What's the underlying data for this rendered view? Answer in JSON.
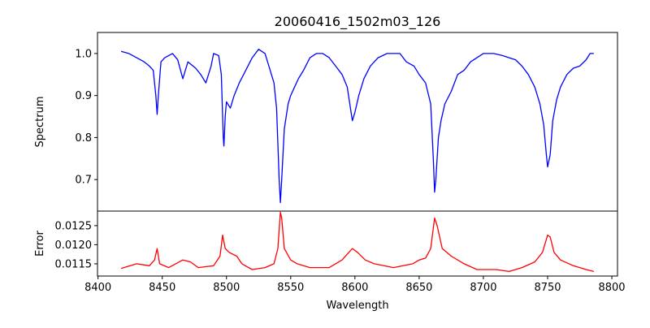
{
  "chart_data": [
    {
      "type": "line",
      "title": "20060416_1502m03_126",
      "xlabel": "",
      "ylabel": "Spectrum",
      "xlim": [
        8399.6,
        8804.4
      ],
      "ylim": [
        0.625,
        1.05
      ],
      "yticks": [
        0.7,
        0.8,
        0.9,
        1.0
      ],
      "ytick_labels": [
        "0.7",
        "0.8",
        "0.9",
        "1.0"
      ],
      "color": "#0000ff",
      "grid": false,
      "x": [
        8418,
        8424,
        8430,
        8436,
        8440,
        8443,
        8445,
        8446,
        8447,
        8449,
        8452,
        8458,
        8462,
        8466,
        8470,
        8476,
        8480,
        8484,
        8488,
        8490,
        8494,
        8496,
        8497.5,
        8498,
        8499,
        8500,
        8503,
        8506,
        8510,
        8515,
        8520,
        8525,
        8530,
        8534,
        8537,
        8539,
        8541,
        8542,
        8543,
        8545,
        8548,
        8550,
        8553,
        8556,
        8560,
        8565,
        8570,
        8575,
        8580,
        8585,
        8590,
        8594,
        8597,
        8598,
        8600,
        8603,
        8607,
        8612,
        8618,
        8625,
        8635,
        8640,
        8646,
        8650,
        8655,
        8659,
        8661,
        8662,
        8663,
        8665,
        8667,
        8670,
        8675,
        8680,
        8685,
        8690,
        8695,
        8700,
        8708,
        8715,
        8720,
        8725,
        8730,
        8735,
        8740,
        8744,
        8747,
        8749,
        8750,
        8752,
        8754,
        8757,
        8760,
        8765,
        8770,
        8775,
        8780,
        8783,
        8786
      ],
      "y": [
        1.005,
        1.0,
        0.99,
        0.98,
        0.97,
        0.96,
        0.9,
        0.855,
        0.9,
        0.98,
        0.99,
        1.0,
        0.985,
        0.94,
        0.98,
        0.965,
        0.95,
        0.93,
        0.97,
        1.0,
        0.995,
        0.95,
        0.8,
        0.78,
        0.85,
        0.885,
        0.87,
        0.9,
        0.93,
        0.96,
        0.99,
        1.01,
        1.0,
        0.96,
        0.93,
        0.87,
        0.7,
        0.645,
        0.7,
        0.82,
        0.88,
        0.9,
        0.92,
        0.94,
        0.96,
        0.99,
        1.0,
        1.0,
        0.99,
        0.97,
        0.95,
        0.92,
        0.86,
        0.84,
        0.86,
        0.9,
        0.94,
        0.97,
        0.99,
        1.0,
        1.0,
        0.98,
        0.97,
        0.95,
        0.93,
        0.88,
        0.75,
        0.67,
        0.7,
        0.8,
        0.84,
        0.88,
        0.91,
        0.95,
        0.96,
        0.98,
        0.99,
        1.0,
        1.0,
        0.995,
        0.99,
        0.985,
        0.97,
        0.95,
        0.92,
        0.88,
        0.83,
        0.76,
        0.73,
        0.76,
        0.84,
        0.89,
        0.92,
        0.95,
        0.965,
        0.97,
        0.985,
        1.0,
        1.0
      ]
    },
    {
      "type": "line",
      "title": "",
      "xlabel": "Wavelength",
      "ylabel": "Error",
      "xlim": [
        8399.6,
        8804.4
      ],
      "ylim": [
        0.01118,
        0.01288
      ],
      "yticks": [
        0.0115,
        0.012,
        0.0125
      ],
      "ytick_labels": [
        "0.0115",
        "0.0120",
        "0.0125"
      ],
      "xticks": [
        8400,
        8450,
        8500,
        8550,
        8600,
        8650,
        8700,
        8750,
        8800
      ],
      "xtick_labels": [
        "8400",
        "8450",
        "8500",
        "8550",
        "8600",
        "8650",
        "8700",
        "8750",
        "8800"
      ],
      "color": "#ff0000",
      "grid": false,
      "x": [
        8418,
        8430,
        8440,
        8444,
        8446,
        8448,
        8455,
        8466,
        8472,
        8478,
        8490,
        8495,
        8497,
        8499,
        8502,
        8508,
        8512,
        8520,
        8530,
        8537,
        8540,
        8542,
        8543,
        8545,
        8550,
        8555,
        8565,
        8580,
        8590,
        8598,
        8602,
        8608,
        8615,
        8630,
        8645,
        8650,
        8655,
        8659,
        8662,
        8664,
        8668,
        8675,
        8685,
        8695,
        8710,
        8720,
        8730,
        8740,
        8746,
        8750,
        8752,
        8755,
        8760,
        8770,
        8780,
        8786
      ],
      "y": [
        0.01138,
        0.0115,
        0.01145,
        0.0116,
        0.0119,
        0.0115,
        0.0114,
        0.0116,
        0.01155,
        0.0114,
        0.01145,
        0.0117,
        0.01225,
        0.0119,
        0.0118,
        0.0117,
        0.0115,
        0.01135,
        0.0114,
        0.0115,
        0.0119,
        0.01285,
        0.0127,
        0.0119,
        0.0116,
        0.0115,
        0.0114,
        0.0114,
        0.0116,
        0.0119,
        0.0118,
        0.0116,
        0.0115,
        0.0114,
        0.0115,
        0.0116,
        0.01165,
        0.0119,
        0.0127,
        0.0125,
        0.0119,
        0.0117,
        0.0115,
        0.01135,
        0.01135,
        0.0113,
        0.0114,
        0.01155,
        0.0118,
        0.01225,
        0.0122,
        0.0118,
        0.0116,
        0.01145,
        0.01135,
        0.0113
      ]
    }
  ]
}
